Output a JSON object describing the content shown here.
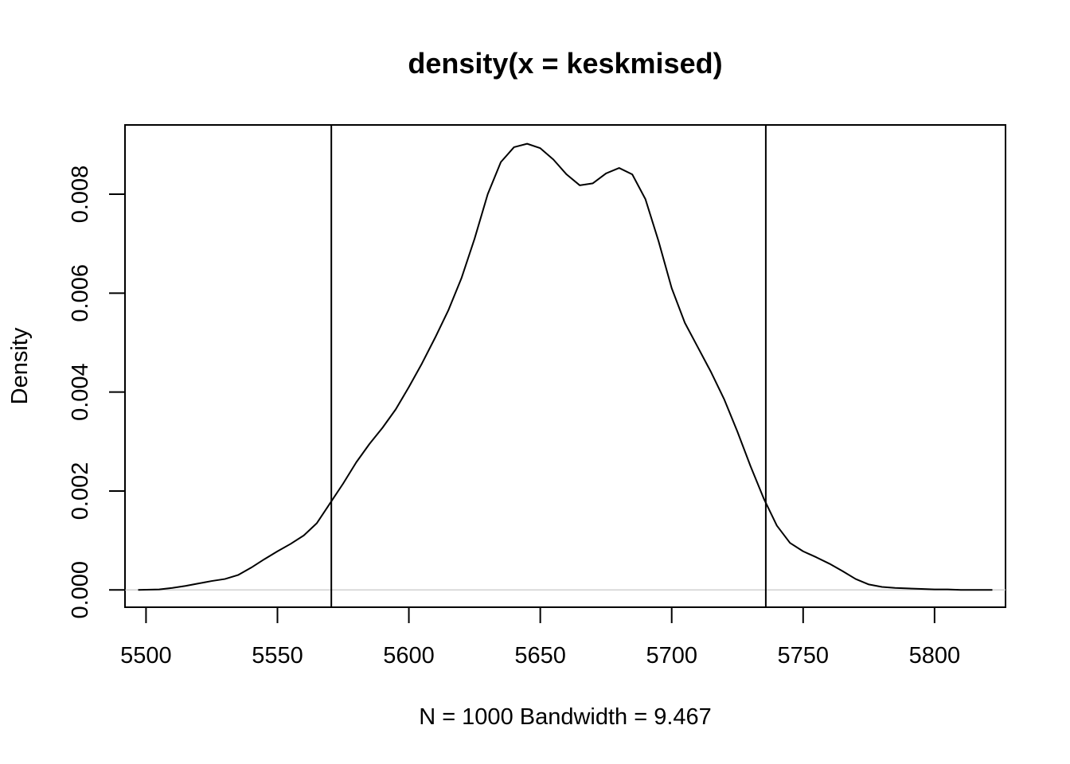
{
  "chart_data": {
    "type": "line",
    "title": "density(x = keskmised)",
    "xlabel": "N = 1000   Bandwidth = 9.467",
    "ylabel": "Density",
    "xlim": [
      5492,
      5827
    ],
    "ylim": [
      -0.00035,
      0.0094
    ],
    "x_ticks": [
      "5500",
      "5550",
      "5600",
      "5650",
      "5700",
      "5750",
      "5800"
    ],
    "x_tick_values": [
      5500,
      5550,
      5600,
      5650,
      5700,
      5750,
      5800
    ],
    "y_ticks": [
      "0.000",
      "0.002",
      "0.004",
      "0.006",
      "0.008"
    ],
    "y_tick_values": [
      0,
      0.002,
      0.004,
      0.006,
      0.008
    ],
    "grid": false,
    "baseline": 0,
    "vlines": [
      5570.5,
      5735.8
    ],
    "series": [
      {
        "x": [
          5497,
          5505,
          5510,
          5515,
          5520,
          5525,
          5530,
          5535,
          5540,
          5545,
          5550,
          5555,
          5560,
          5565,
          5570,
          5575,
          5580,
          5585,
          5590,
          5595,
          5600,
          5605,
          5610,
          5615,
          5620,
          5625,
          5630,
          5635,
          5640,
          5645,
          5650,
          5655,
          5660,
          5665,
          5670,
          5675,
          5680,
          5685,
          5690,
          5695,
          5700,
          5705,
          5710,
          5715,
          5720,
          5725,
          5730,
          5735,
          5740,
          5745,
          5750,
          5755,
          5760,
          5765,
          5770,
          5775,
          5780,
          5785,
          5790,
          5795,
          5800,
          5805,
          5810,
          5815,
          5822
        ],
        "y": [
          0.0,
          1e-05,
          4e-05,
          8e-05,
          0.00013,
          0.00018,
          0.00022,
          0.0003,
          0.00045,
          0.00062,
          0.00078,
          0.00093,
          0.0011,
          0.00135,
          0.00175,
          0.00215,
          0.00258,
          0.00295,
          0.00328,
          0.00365,
          0.0041,
          0.00458,
          0.0051,
          0.00565,
          0.0063,
          0.0071,
          0.008,
          0.00865,
          0.00895,
          0.00902,
          0.00893,
          0.0087,
          0.0084,
          0.00818,
          0.00822,
          0.00842,
          0.00853,
          0.0084,
          0.0079,
          0.00705,
          0.0061,
          0.0054,
          0.0049,
          0.0044,
          0.00385,
          0.0032,
          0.0025,
          0.00185,
          0.0013,
          0.00095,
          0.00078,
          0.00066,
          0.00053,
          0.00038,
          0.00022,
          0.00011,
          6e-05,
          4e-05,
          3e-05,
          2e-05,
          1e-05,
          1e-05,
          0.0,
          0.0,
          0.0
        ]
      }
    ]
  }
}
